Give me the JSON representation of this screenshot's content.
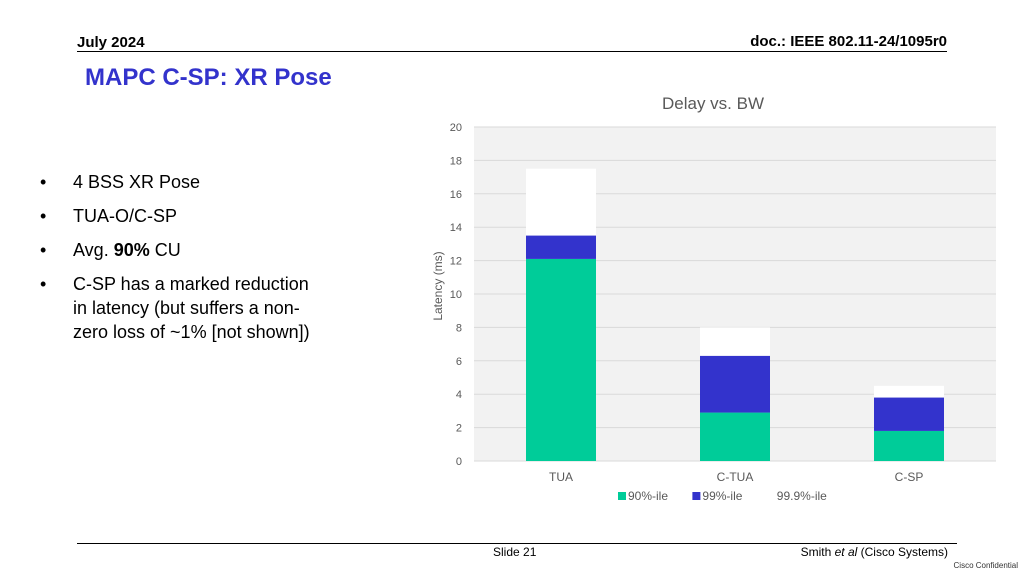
{
  "header": {
    "date": "July 2024",
    "doc": "doc.: IEEE 802.11-24/1095r0"
  },
  "slide_title": "MAPC C-SP: XR Pose",
  "bullets": [
    {
      "pre": "4 BSS XR Pose",
      "bold": "",
      "post": ""
    },
    {
      "pre": "TUA-O/C-SP",
      "bold": "",
      "post": ""
    },
    {
      "pre": "Avg. ",
      "bold": "90%",
      "post": " CU"
    },
    {
      "pre": "C-SP has a marked reduction in latency (but suffers a non-zero loss of ~1% [not shown])",
      "bold": "",
      "post": ""
    }
  ],
  "bullet_symbol": "•",
  "footer": {
    "slide": "Slide 21",
    "author_name": "Smith ",
    "author_italic": "et al",
    "author_org": " (Cisco Systems)",
    "confidential": "Cisco Confidential"
  },
  "chart_data": {
    "type": "bar",
    "stacked": true,
    "title": "Delay vs. BW",
    "xlabel": "",
    "ylabel": "Latency (ms)",
    "ylim": [
      0,
      20
    ],
    "yticks": [
      0,
      2,
      4,
      6,
      8,
      10,
      12,
      14,
      16,
      18,
      20
    ],
    "grid": true,
    "legend_position": "bottom",
    "categories": [
      "TUA",
      "C-TUA",
      "C-SP"
    ],
    "series": [
      {
        "name": "90%-ile",
        "values": [
          12.1,
          2.9,
          1.8
        ],
        "color": "#00cc99"
      },
      {
        "name": "99%-ile",
        "values": [
          1.4,
          3.4,
          2.0
        ],
        "color": "#3333cc"
      },
      {
        "name": "99.9%-ile",
        "values": [
          4.0,
          1.7,
          0.7
        ],
        "color": "#ffffff"
      }
    ],
    "plot_background": "#f2f2f2"
  }
}
